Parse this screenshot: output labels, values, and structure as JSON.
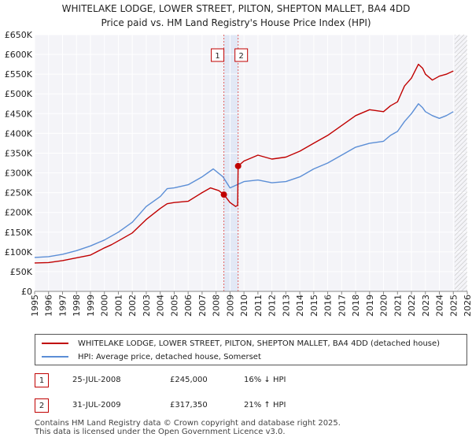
{
  "chart_data": {
    "type": "line",
    "title_line1": "WHITELAKE LODGE, LOWER STREET, PILTON, SHEPTON MALLET, BA4 4DD",
    "title_line2": "Price paid vs. HM Land Registry's House Price Index (HPI)",
    "ylim": [
      0,
      650000
    ],
    "xlim": [
      1995,
      2026
    ],
    "y_ticks": [
      {
        "v": 0,
        "label": "£0"
      },
      {
        "v": 50000,
        "label": "£50K"
      },
      {
        "v": 100000,
        "label": "£100K"
      },
      {
        "v": 150000,
        "label": "£150K"
      },
      {
        "v": 200000,
        "label": "£200K"
      },
      {
        "v": 250000,
        "label": "£250K"
      },
      {
        "v": 300000,
        "label": "£300K"
      },
      {
        "v": 350000,
        "label": "£350K"
      },
      {
        "v": 400000,
        "label": "£400K"
      },
      {
        "v": 450000,
        "label": "£450K"
      },
      {
        "v": 500000,
        "label": "£500K"
      },
      {
        "v": 550000,
        "label": "£550K"
      },
      {
        "v": 600000,
        "label": "£600K"
      },
      {
        "v": 650000,
        "label": "£650K"
      }
    ],
    "x_ticks": [
      "1995",
      "1996",
      "1997",
      "1998",
      "1999",
      "2000",
      "2001",
      "2002",
      "2003",
      "2004",
      "2005",
      "2006",
      "2007",
      "2008",
      "2009",
      "2010",
      "2011",
      "2012",
      "2013",
      "2014",
      "2015",
      "2016",
      "2017",
      "2018",
      "2019",
      "2020",
      "2021",
      "2022",
      "2023",
      "2024",
      "2025",
      "2026"
    ],
    "series": [
      {
        "name": "WHITELAKE LODGE, LOWER STREET, PILTON, SHEPTON MALLET, BA4 4DD (detached house)",
        "color": "#c00000",
        "x": [
          1995.0,
          1996.0,
          1997.0,
          1998.0,
          1999.0,
          2000.0,
          2000.5,
          2001.0,
          2002.0,
          2003.0,
          2004.0,
          2004.5,
          2005.0,
          2006.0,
          2007.0,
          2007.6,
          2008.2,
          2008.56,
          2009.0,
          2009.4,
          2009.55,
          2009.58,
          2010.0,
          2011.0,
          2012.0,
          2013.0,
          2014.0,
          2015.0,
          2016.0,
          2017.0,
          2018.0,
          2019.0,
          2020.0,
          2020.5,
          2021.0,
          2021.5,
          2022.0,
          2022.5,
          2022.8,
          2023.0,
          2023.5,
          2024.0,
          2024.5,
          2025.0
        ],
        "values": [
          72000,
          73000,
          78000,
          85000,
          92000,
          110000,
          118000,
          128000,
          148000,
          182000,
          210000,
          222000,
          225000,
          228000,
          250000,
          262000,
          255000,
          245000,
          225000,
          215000,
          218000,
          317350,
          330000,
          345000,
          335000,
          340000,
          355000,
          375000,
          395000,
          420000,
          445000,
          460000,
          455000,
          470000,
          480000,
          520000,
          540000,
          575000,
          565000,
          550000,
          535000,
          545000,
          550000,
          558000
        ]
      },
      {
        "name": "HPI: Average price, detached house, Somerset",
        "color": "#5b8ed6",
        "x": [
          1995.0,
          1996.0,
          1997.0,
          1998.0,
          1999.0,
          2000.0,
          2001.0,
          2002.0,
          2003.0,
          2004.0,
          2004.5,
          2005.0,
          2006.0,
          2007.0,
          2007.8,
          2008.5,
          2009.0,
          2009.5,
          2010.0,
          2011.0,
          2012.0,
          2013.0,
          2014.0,
          2015.0,
          2016.0,
          2017.0,
          2018.0,
          2019.0,
          2020.0,
          2020.5,
          2021.0,
          2021.5,
          2022.0,
          2022.5,
          2022.8,
          2023.0,
          2023.5,
          2024.0,
          2024.5,
          2025.0
        ],
        "values": [
          86000,
          88000,
          94000,
          103000,
          115000,
          130000,
          150000,
          175000,
          215000,
          240000,
          260000,
          262000,
          270000,
          290000,
          310000,
          290000,
          262000,
          270000,
          278000,
          282000,
          275000,
          278000,
          290000,
          310000,
          325000,
          345000,
          365000,
          375000,
          380000,
          395000,
          405000,
          430000,
          450000,
          475000,
          465000,
          455000,
          445000,
          438000,
          445000,
          455000
        ]
      }
    ],
    "forecast_start": 2025.1,
    "sales": [
      {
        "id": "1",
        "x": 2008.56,
        "value": 245000,
        "date": "25-JUL-2008",
        "price": "£245,000",
        "hpi": "16% ↓ HPI"
      },
      {
        "id": "2",
        "x": 2009.58,
        "value": 317350,
        "date": "31-JUL-2009",
        "price": "£317,350",
        "hpi": "21% ↑ HPI"
      }
    ]
  },
  "footer": {
    "line1": "Contains HM Land Registry data © Crown copyright and database right 2025.",
    "line2": "This data is licensed under the Open Government Licence v3.0."
  }
}
